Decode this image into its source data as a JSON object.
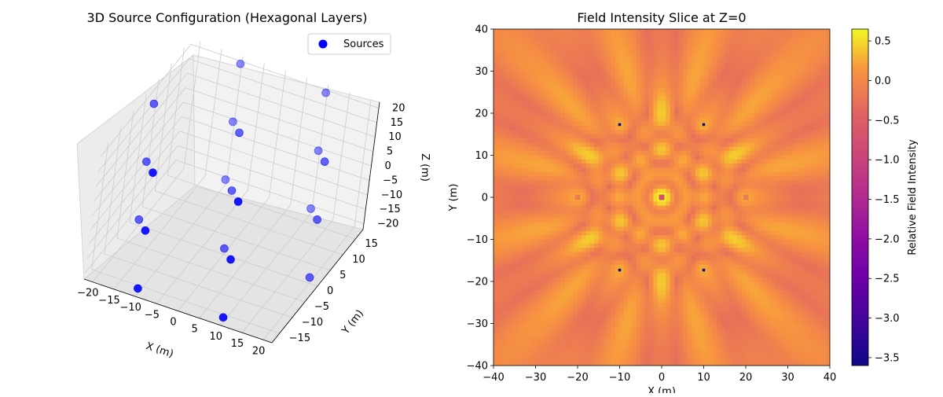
{
  "chart_data": [
    {
      "type": "scatter",
      "projection": "3d",
      "title": "3D Source Configuration (Hexagonal Layers)",
      "xlabel": "X (m)",
      "ylabel": "Y (m)",
      "zlabel": "Z (m)",
      "xlim": [
        -22,
        22
      ],
      "ylim": [
        -18,
        18
      ],
      "zlim": [
        -22,
        22
      ],
      "x_ticks": [
        "−20",
        "−15",
        "−10",
        "−5",
        "0",
        "5",
        "10",
        "15",
        "20"
      ],
      "y_ticks": [
        "−15",
        "−10",
        "−5",
        "0",
        "5",
        "10",
        "15"
      ],
      "z_ticks": [
        "−20",
        "−15",
        "−10",
        "−5",
        "0",
        "5",
        "10",
        "15",
        "20"
      ],
      "marker_color": "#0000ff",
      "legend": {
        "label": "Sources",
        "position": "upper-right"
      },
      "series": [
        {
          "name": "Sources",
          "points": [
            {
              "x": 0,
              "y": 0,
              "z": -20
            },
            {
              "x": 0,
              "y": 0,
              "z": 0
            },
            {
              "x": 0,
              "y": 0,
              "z": 20
            },
            {
              "x": 20,
              "y": 0,
              "z": -20
            },
            {
              "x": 20,
              "y": 0,
              "z": 0
            },
            {
              "x": 20,
              "y": 0,
              "z": 20
            },
            {
              "x": -20,
              "y": 0,
              "z": -20
            },
            {
              "x": -20,
              "y": 0,
              "z": 0
            },
            {
              "x": -20,
              "y": 0,
              "z": 20
            },
            {
              "x": 10,
              "y": 17.3,
              "z": -20
            },
            {
              "x": 10,
              "y": 17.3,
              "z": 0
            },
            {
              "x": 10,
              "y": 17.3,
              "z": 20
            },
            {
              "x": -10,
              "y": 17.3,
              "z": -20
            },
            {
              "x": -10,
              "y": 17.3,
              "z": 0
            },
            {
              "x": -10,
              "y": 17.3,
              "z": 20
            },
            {
              "x": 10,
              "y": -17.3,
              "z": -20
            },
            {
              "x": 10,
              "y": -17.3,
              "z": 0
            },
            {
              "x": 10,
              "y": -17.3,
              "z": 20
            },
            {
              "x": -10,
              "y": -17.3,
              "z": -20
            },
            {
              "x": -10,
              "y": -17.3,
              "z": 0
            },
            {
              "x": -10,
              "y": -17.3,
              "z": 20
            }
          ]
        }
      ]
    },
    {
      "type": "heatmap",
      "title": "Field Intensity Slice at Z=0",
      "xlabel": "X (m)",
      "ylabel": "Y (m)",
      "xlim": [
        -40,
        40
      ],
      "ylim": [
        -40,
        40
      ],
      "x_ticks": [
        "−40",
        "−30",
        "−20",
        "−10",
        "0",
        "10",
        "20",
        "30",
        "40"
      ],
      "y_ticks": [
        "40",
        "30",
        "20",
        "10",
        "0",
        "−10",
        "−20",
        "−30",
        "−40"
      ],
      "colormap": "plasma",
      "clim": [
        -3.6,
        0.65
      ],
      "colorbar": {
        "label": "Relative Field Intensity",
        "ticks": [
          "0.5",
          "0.0",
          "−0.5",
          "−1.0",
          "−1.5",
          "−2.0",
          "−2.5",
          "−3.0",
          "−3.5"
        ]
      },
      "sources_xy": [
        [
          0,
          0
        ],
        [
          20,
          0
        ],
        [
          -20,
          0
        ],
        [
          10,
          17.3
        ],
        [
          -10,
          17.3
        ],
        [
          10,
          -17.3
        ],
        [
          -10,
          -17.3
        ]
      ]
    }
  ]
}
